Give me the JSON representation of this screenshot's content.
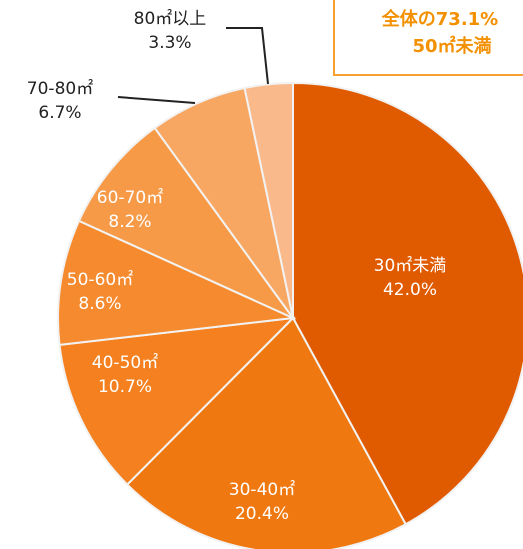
{
  "chart_data": {
    "type": "pie",
    "categories": [
      "30㎡未満",
      "30-40㎡",
      "40-50㎡",
      "50-60㎡",
      "60-70㎡",
      "70-80㎡",
      "80㎡以上"
    ],
    "values": [
      42.0,
      20.4,
      10.7,
      8.6,
      8.2,
      6.7,
      3.3
    ],
    "value_labels": [
      "42.0%",
      "20.4%",
      "10.7%",
      "8.6%",
      "8.2%",
      "6.7%",
      "3.3%"
    ],
    "colors": [
      "#e05a00",
      "#f07810",
      "#f5801f",
      "#f68a2e",
      "#f79a48",
      "#f8a763",
      "#fab98a"
    ],
    "annotation": [
      "全体の73.1%",
      "50㎡未満"
    ]
  }
}
